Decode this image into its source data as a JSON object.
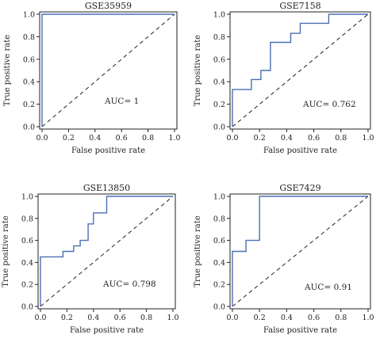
{
  "chart_data": [
    {
      "type": "line",
      "title": "GSE35959",
      "xlabel": "False positive rate",
      "ylabel": "True positive rate",
      "xlim": [
        0,
        1
      ],
      "ylim": [
        0,
        1
      ],
      "x_ticks": [
        "0.0",
        "0.2",
        "0.4",
        "0.6",
        "0.8",
        "1.0"
      ],
      "y_ticks": [
        "0.0",
        "0.2",
        "0.4",
        "0.6",
        "0.8",
        "1.0"
      ],
      "annotation": "AUC= 1",
      "series": [
        {
          "x": [
            0,
            0,
            1
          ],
          "y": [
            0,
            1,
            1
          ],
          "color": "#4a6fb5"
        }
      ],
      "reference_line": {
        "x": [
          0,
          1
        ],
        "y": [
          0,
          1
        ]
      },
      "grid": false
    },
    {
      "type": "line",
      "title": "GSE7158",
      "xlabel": "False positive rate",
      "ylabel": "True positive rate",
      "xlim": [
        0,
        1
      ],
      "ylim": [
        0,
        1
      ],
      "x_ticks": [
        "0.0",
        "0.2",
        "0.4",
        "0.6",
        "0.8",
        "1.0"
      ],
      "y_ticks": [
        "0.0",
        "0.2",
        "0.4",
        "0.6",
        "0.8",
        "1.0"
      ],
      "annotation": "AUC= 0.762",
      "series": [
        {
          "x": [
            0,
            0,
            0.14,
            0.14,
            0.21,
            0.21,
            0.28,
            0.28,
            0.43,
            0.43,
            0.5,
            0.5,
            0.71,
            0.71,
            1
          ],
          "y": [
            0,
            0.33,
            0.33,
            0.42,
            0.42,
            0.5,
            0.5,
            0.75,
            0.75,
            0.83,
            0.83,
            0.92,
            0.92,
            1,
            1
          ],
          "color": "#4a6fb5"
        }
      ],
      "reference_line": {
        "x": [
          0,
          1
        ],
        "y": [
          0,
          1
        ]
      },
      "grid": false
    },
    {
      "type": "line",
      "title": "GSE13850",
      "xlabel": "False positive rate",
      "ylabel": "True positive rate",
      "xlim": [
        0,
        1
      ],
      "ylim": [
        0,
        1
      ],
      "x_ticks": [
        "0.0",
        "0.2",
        "0.4",
        "0.6",
        "0.8",
        "1.0"
      ],
      "y_ticks": [
        "0.0",
        "0.2",
        "0.4",
        "0.6",
        "0.8",
        "1.0"
      ],
      "annotation": "AUC= 0.798",
      "series": [
        {
          "x": [
            0,
            0,
            0.17,
            0.17,
            0.25,
            0.25,
            0.3,
            0.3,
            0.36,
            0.36,
            0.4,
            0.4,
            0.5,
            0.5,
            1
          ],
          "y": [
            0,
            0.45,
            0.45,
            0.5,
            0.5,
            0.55,
            0.55,
            0.6,
            0.6,
            0.75,
            0.75,
            0.85,
            0.85,
            1,
            1
          ],
          "color": "#4a6fb5"
        }
      ],
      "reference_line": {
        "x": [
          0,
          1
        ],
        "y": [
          0,
          1
        ]
      },
      "grid": false
    },
    {
      "type": "line",
      "title": "GSE7429",
      "xlabel": "False positive rate",
      "ylabel": "True positive rate",
      "xlim": [
        0,
        1
      ],
      "ylim": [
        0,
        1
      ],
      "x_ticks": [
        "0.0",
        "0.2",
        "0.4",
        "0.6",
        "0.8",
        "1.0"
      ],
      "y_ticks": [
        "0.0",
        "0.2",
        "0.4",
        "0.6",
        "0.8",
        "1.0"
      ],
      "annotation": "AUC= 0.91",
      "series": [
        {
          "x": [
            0,
            0,
            0.1,
            0.1,
            0.2,
            0.2,
            1
          ],
          "y": [
            0,
            0.5,
            0.5,
            0.6,
            0.6,
            1,
            1
          ],
          "color": "#4a6fb5"
        }
      ],
      "reference_line": {
        "x": [
          0,
          1
        ],
        "y": [
          0,
          1
        ]
      },
      "grid": false
    }
  ]
}
